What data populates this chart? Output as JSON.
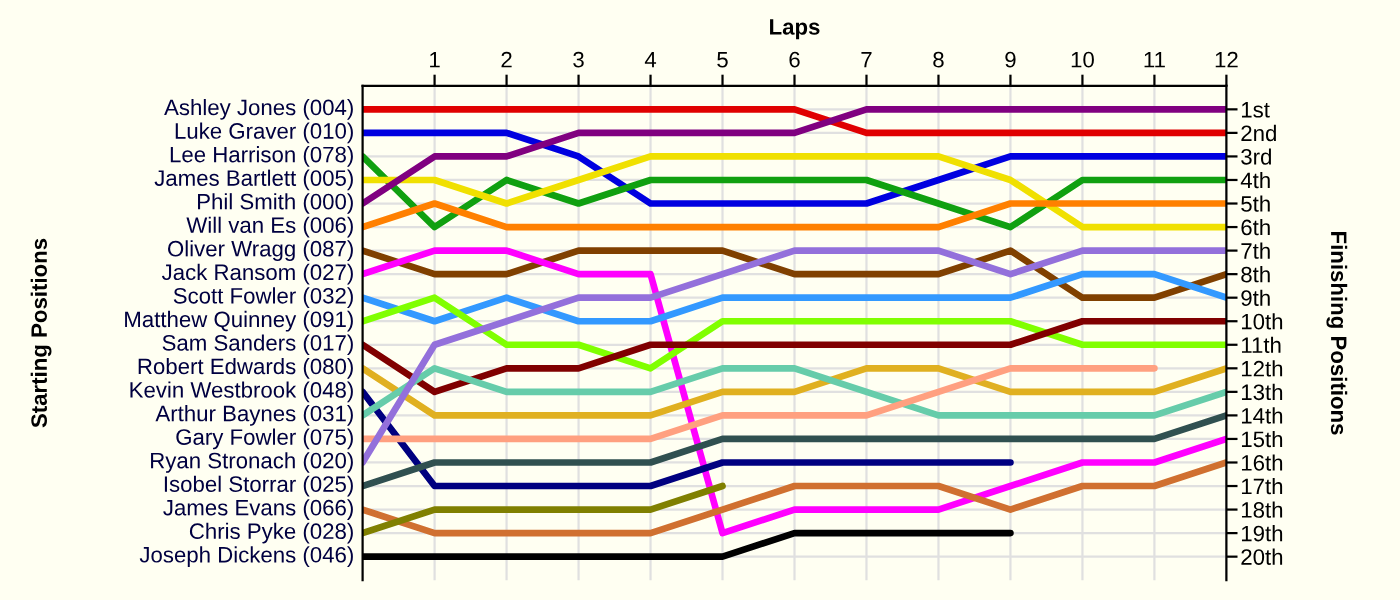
{
  "chart_data": {
    "type": "line",
    "xlabel": "Laps",
    "annotations": [
      "Starting Positions",
      "Finishing Positions"
    ],
    "x": [
      0,
      1,
      2,
      3,
      4,
      5,
      6,
      7,
      8,
      9,
      10,
      11,
      12
    ],
    "xlim": [
      0,
      12
    ],
    "xticks": [
      1,
      2,
      3,
      4,
      5,
      6,
      7,
      8,
      9,
      10,
      11,
      12
    ],
    "ylim": [
      21,
      0
    ],
    "yticks": [
      {
        "value": 1,
        "label": "1st"
      },
      {
        "value": 2,
        "label": "2nd"
      },
      {
        "value": 3,
        "label": "3rd"
      },
      {
        "value": 4,
        "label": "4th"
      },
      {
        "value": 5,
        "label": "5th"
      },
      {
        "value": 6,
        "label": "6th"
      },
      {
        "value": 7,
        "label": "7th"
      },
      {
        "value": 8,
        "label": "8th"
      },
      {
        "value": 9,
        "label": "9th"
      },
      {
        "value": 10,
        "label": "10th"
      },
      {
        "value": 11,
        "label": "11th"
      },
      {
        "value": 12,
        "label": "12th"
      },
      {
        "value": 13,
        "label": "13th"
      },
      {
        "value": 14,
        "label": "14th"
      },
      {
        "value": 15,
        "label": "15th"
      },
      {
        "value": 16,
        "label": "16th"
      },
      {
        "value": 17,
        "label": "17th"
      },
      {
        "value": 18,
        "label": "18th"
      },
      {
        "value": 19,
        "label": "19th"
      },
      {
        "value": 20,
        "label": "20th"
      }
    ],
    "grid": true,
    "marker": "none",
    "line_style": "solid",
    "series": [
      {
        "name": "Ashley Jones (004)",
        "color": "#e00000",
        "values": [
          1,
          1,
          1,
          1,
          1,
          1,
          1,
          2,
          2,
          2,
          2,
          2,
          2
        ]
      },
      {
        "name": "Luke Graver (010)",
        "color": "#0000e0",
        "values": [
          2,
          2,
          2,
          3,
          5,
          5,
          5,
          5,
          4,
          3,
          3,
          3,
          3
        ]
      },
      {
        "name": "Lee Harrison (078)",
        "color": "#10a010",
        "values": [
          3,
          6,
          4,
          5,
          4,
          4,
          4,
          4,
          5,
          6,
          4,
          4,
          4
        ]
      },
      {
        "name": "James Bartlett (005)",
        "color": "#f0e000",
        "values": [
          4,
          4,
          5,
          4,
          3,
          3,
          3,
          3,
          3,
          4,
          6,
          6,
          6
        ]
      },
      {
        "name": "Phil Smith (000)",
        "color": "#800080",
        "values": [
          5,
          3,
          3,
          2,
          2,
          2,
          2,
          1,
          1,
          1,
          1,
          1,
          1
        ]
      },
      {
        "name": "Will van Es (006)",
        "color": "#ff8000",
        "values": [
          6,
          5,
          6,
          6,
          6,
          6,
          6,
          6,
          6,
          5,
          5,
          5,
          5
        ]
      },
      {
        "name": "Oliver Wragg (087)",
        "color": "#804000",
        "values": [
          7,
          8,
          8,
          7,
          7,
          7,
          8,
          8,
          8,
          7,
          9,
          9,
          8
        ]
      },
      {
        "name": "Jack Ransom (027)",
        "color": "#ff00ff",
        "values": [
          8,
          7,
          7,
          8,
          8,
          19,
          18,
          18,
          18,
          17,
          16,
          16,
          15
        ]
      },
      {
        "name": "Scott Fowler (032)",
        "color": "#3399ff",
        "values": [
          9,
          10,
          9,
          10,
          10,
          9,
          9,
          9,
          9,
          9,
          8,
          8,
          9
        ]
      },
      {
        "name": "Matthew Quinney (091)",
        "color": "#80ff00",
        "values": [
          10,
          9,
          11,
          11,
          12,
          10,
          10,
          10,
          10,
          10,
          11,
          11,
          11
        ]
      },
      {
        "name": "Sam Sanders (017)",
        "color": "#800000",
        "values": [
          11,
          13,
          12,
          12,
          11,
          11,
          11,
          11,
          11,
          11,
          10,
          10,
          10
        ]
      },
      {
        "name": "Robert Edwards (080)",
        "color": "#e0b020",
        "values": [
          12,
          14,
          14,
          14,
          14,
          13,
          13,
          12,
          12,
          13,
          13,
          13,
          12
        ]
      },
      {
        "name": "Kevin Westbrook (048)",
        "color": "#000080",
        "values": [
          13,
          17,
          17,
          17,
          17,
          16,
          16,
          16,
          16,
          16,
          null,
          null,
          null
        ]
      },
      {
        "name": "Arthur Baynes (031)",
        "color": "#66ccaa",
        "values": [
          14,
          12,
          13,
          13,
          13,
          12,
          12,
          13,
          14,
          14,
          14,
          14,
          13
        ]
      },
      {
        "name": "Gary Fowler (075)",
        "color": "#ffa080",
        "values": [
          15,
          15,
          15,
          15,
          15,
          14,
          14,
          14,
          13,
          12,
          12,
          12,
          null
        ]
      },
      {
        "name": "Ryan Stronach (020)",
        "color": "#9370db",
        "values": [
          16,
          11,
          10,
          9,
          9,
          8,
          7,
          7,
          7,
          8,
          7,
          7,
          7
        ]
      },
      {
        "name": "Isobel Storrar (025)",
        "color": "#305050",
        "values": [
          17,
          16,
          16,
          16,
          16,
          15,
          15,
          15,
          15,
          15,
          15,
          15,
          14
        ]
      },
      {
        "name": "James Evans (066)",
        "color": "#d07030",
        "values": [
          18,
          19,
          19,
          19,
          19,
          18,
          17,
          17,
          17,
          18,
          17,
          17,
          16
        ]
      },
      {
        "name": "Chris Pyke (028)",
        "color": "#808000",
        "values": [
          19,
          18,
          18,
          18,
          18,
          17,
          null,
          null,
          null,
          null,
          null,
          null,
          null
        ]
      },
      {
        "name": "Joseph Dickens (046)",
        "color": "#000000",
        "values": [
          20,
          20,
          20,
          20,
          20,
          20,
          19,
          19,
          19,
          19,
          null,
          null,
          null
        ]
      }
    ]
  }
}
